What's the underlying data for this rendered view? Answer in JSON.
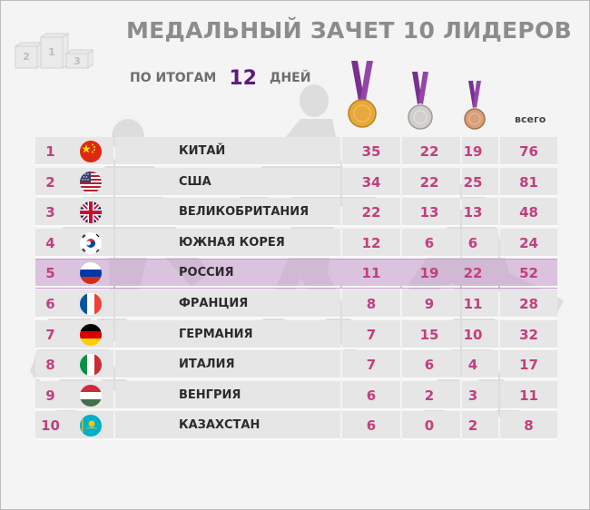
{
  "title": "МЕДАЛЬНЫЙ ЗАЧЕТ 10 ЛИДЕРОВ",
  "subtitle": {
    "prefix": "ПО ИТОГАМ",
    "days": "12",
    "suffix": "ДНЕЙ"
  },
  "podium_digits": [
    "2",
    "1",
    "3"
  ],
  "total_header": "всего",
  "colors": {
    "title_gray": "#8c8c8c",
    "accent_number": "#c0407e",
    "days_purple": "#5b1a7c",
    "ribbon_purple": "#7a2f8f",
    "highlight_row": "#c69acd",
    "gold": "#e8a83a",
    "silver": "#d0cfcc",
    "bronze": "#d8a07a"
  },
  "icons": [
    "gold-medal-icon",
    "silver-medal-icon",
    "bronze-medal-icon",
    "podium-icon"
  ],
  "rows": [
    {
      "rank": "1",
      "country": "КИТАЙ",
      "gold": "35",
      "silver": "22",
      "bronze": "19",
      "total": "76",
      "flag": "china-flag-icon"
    },
    {
      "rank": "2",
      "country": "США",
      "gold": "34",
      "silver": "22",
      "bronze": "25",
      "total": "81",
      "flag": "usa-flag-icon"
    },
    {
      "rank": "3",
      "country": "ВЕЛИКОБРИТАНИЯ",
      "gold": "22",
      "silver": "13",
      "bronze": "13",
      "total": "48",
      "flag": "uk-flag-icon"
    },
    {
      "rank": "4",
      "country": "ЮЖНАЯ КОРЕЯ",
      "gold": "12",
      "silver": "6",
      "bronze": "6",
      "total": "24",
      "flag": "south-korea-flag-icon"
    },
    {
      "rank": "5",
      "country": "РОССИЯ",
      "gold": "11",
      "silver": "19",
      "bronze": "22",
      "total": "52",
      "flag": "russia-flag-icon",
      "highlight": true
    },
    {
      "rank": "6",
      "country": "ФРАНЦИЯ",
      "gold": "8",
      "silver": "9",
      "bronze": "11",
      "total": "28",
      "flag": "france-flag-icon"
    },
    {
      "rank": "7",
      "country": "ГЕРМАНИЯ",
      "gold": "7",
      "silver": "15",
      "bronze": "10",
      "total": "32",
      "flag": "germany-flag-icon"
    },
    {
      "rank": "8",
      "country": "ИТАЛИЯ",
      "gold": "7",
      "silver": "6",
      "bronze": "4",
      "total": "17",
      "flag": "italy-flag-icon"
    },
    {
      "rank": "9",
      "country": "ВЕНГРИЯ",
      "gold": "6",
      "silver": "2",
      "bronze": "3",
      "total": "11",
      "flag": "hungary-flag-icon"
    },
    {
      "rank": "10",
      "country": "КАЗАХСТАН",
      "gold": "6",
      "silver": "0",
      "bronze": "2",
      "total": "8",
      "flag": "kazakhstan-flag-icon"
    }
  ]
}
